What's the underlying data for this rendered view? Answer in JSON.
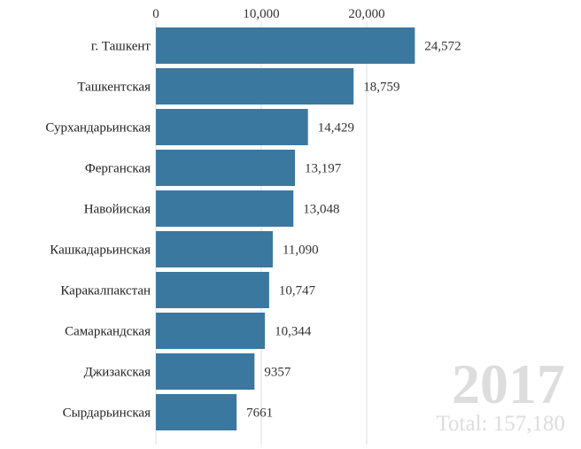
{
  "chart_data": {
    "type": "bar",
    "orientation": "horizontal",
    "categories": [
      "г. Ташкент",
      "Ташкентская",
      "Сурхандарьинская",
      "Ферганская",
      "Навойиская",
      "Кашкадарьинская",
      "Каракалпакстан",
      "Самаркандская",
      "Джизакская",
      "Сырдарьинская"
    ],
    "values": [
      24572,
      18759,
      14429,
      13197,
      13048,
      11090,
      10747,
      10344,
      9357,
      7661
    ],
    "value_labels": [
      "24,572",
      "18,759",
      "14,429",
      "13,197",
      "13,048",
      "11,090",
      "10,747",
      "10,344",
      "9357",
      "7661"
    ],
    "xlim": [
      0,
      26000
    ],
    "x_ticks": [
      0,
      10000,
      20000
    ],
    "x_tick_labels": [
      "0",
      "10,000",
      "20,000"
    ],
    "x_axis_position": "top",
    "grid": true,
    "bar_color": "#3b78a0",
    "year": "2017",
    "total_label": "Total: 157,180"
  }
}
